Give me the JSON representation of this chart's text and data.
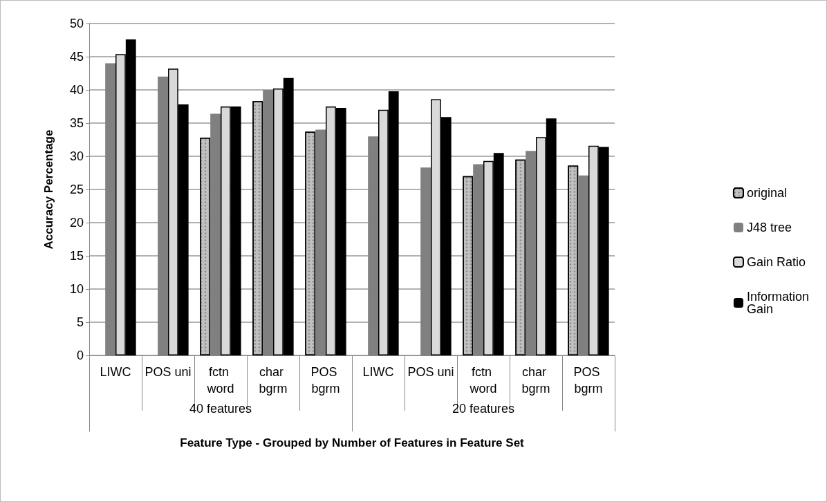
{
  "chart_data": {
    "type": "bar",
    "xlabel": "Feature Type - Grouped by Number of Features in Feature Set",
    "ylabel": "Accuracy Percentage",
    "categories": [
      "LIWC",
      "POS uni",
      "fctn word",
      "char bgrm",
      "POS bgrm",
      "LIWC",
      "POS uni",
      "fctn word",
      "char bgrm",
      "POS bgrm"
    ],
    "annotations": [
      "40 features",
      "20 features"
    ],
    "series": [
      {
        "name": "original",
        "color": "#c0c0c0",
        "values": [
          null,
          null,
          32.8,
          38.3,
          33.7,
          null,
          null,
          27,
          29.5,
          28.6
        ]
      },
      {
        "name": "J48 tree",
        "color": "#808080",
        "values": [
          44,
          42,
          36.4,
          40,
          34,
          33,
          28.3,
          28.8,
          30.8,
          27.1
        ]
      },
      {
        "name": "Gain Ratio",
        "color": "#d9d9d9",
        "values": [
          45.4,
          43.2,
          37.5,
          40.2,
          37.5,
          37,
          38.6,
          29.3,
          32.9,
          31.6
        ]
      },
      {
        "name": "Information Gain",
        "color": "#000000",
        "values": [
          47.6,
          37.8,
          37.5,
          41.8,
          37.3,
          39.8,
          35.9,
          30.5,
          35.7,
          31.4
        ]
      }
    ],
    "ylim": [
      0,
      50
    ],
    "yticks": [
      0,
      5,
      10,
      15,
      20,
      25,
      30,
      35,
      40,
      45,
      50
    ],
    "grid": "y",
    "legend": "right"
  }
}
